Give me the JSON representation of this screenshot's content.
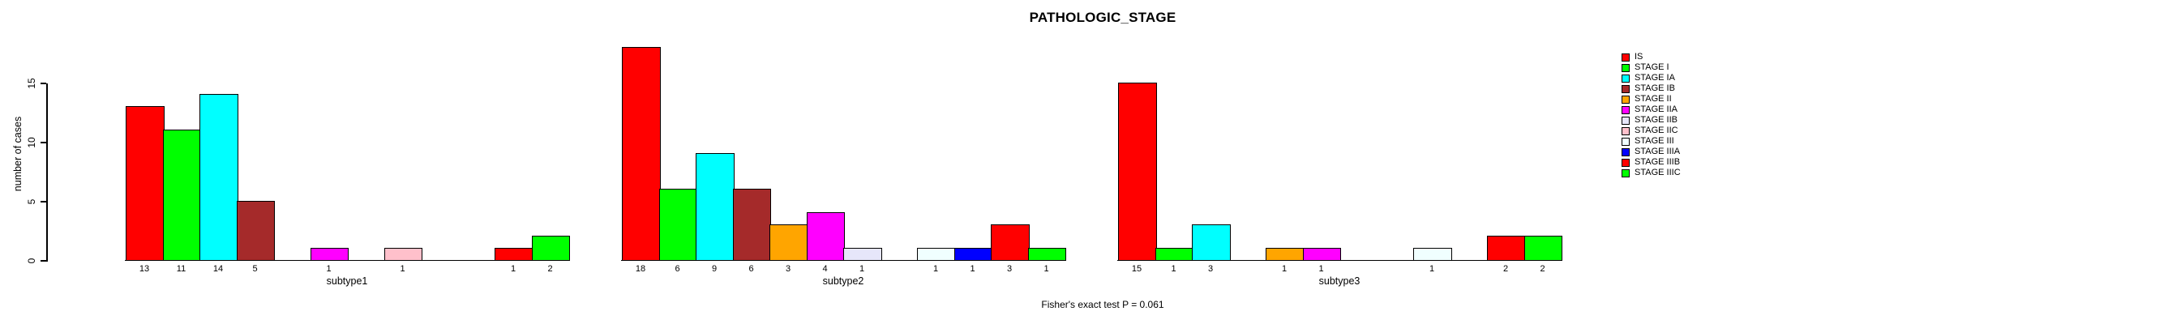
{
  "title": "PATHOLOGIC_STAGE",
  "footer": "Fisher's exact test P = 0.061",
  "chart_data": {
    "type": "bar",
    "title": "PATHOLOGIC_STAGE",
    "xlabel": "",
    "ylabel": "number of cases",
    "ylim": [
      0,
      18
    ],
    "yticks": [
      0,
      5,
      10,
      15
    ],
    "grid": false,
    "legend_position": "right",
    "bar_labels_shown": true,
    "categories": [
      "subtype1",
      "subtype2",
      "subtype3"
    ],
    "series": [
      {
        "name": "IS",
        "color": "#FF0000",
        "values": [
          13,
          18,
          15
        ]
      },
      {
        "name": "STAGE I",
        "color": "#00FF00",
        "values": [
          11,
          6,
          1
        ]
      },
      {
        "name": "STAGE IA",
        "color": "#00FFFF",
        "values": [
          14,
          9,
          3
        ]
      },
      {
        "name": "STAGE IB",
        "color": "#A52A2A",
        "values": [
          5,
          6,
          0
        ]
      },
      {
        "name": "STAGE II",
        "color": "#FFA500",
        "values": [
          0,
          3,
          1
        ]
      },
      {
        "name": "STAGE IIA",
        "color": "#FF00FF",
        "values": [
          1,
          4,
          1
        ]
      },
      {
        "name": "STAGE IIB",
        "color": "#E6E6FA",
        "values": [
          0,
          1,
          0
        ]
      },
      {
        "name": "STAGE IIC",
        "color": "#FFC0CB",
        "values": [
          1,
          0,
          0
        ]
      },
      {
        "name": "STAGE III",
        "color": "#F0FFFF",
        "values": [
          0,
          1,
          1
        ]
      },
      {
        "name": "STAGE IIIA",
        "color": "#0000FF",
        "values": [
          0,
          1,
          0
        ]
      },
      {
        "name": "STAGE IIIB",
        "color": "#FF0000",
        "values": [
          1,
          3,
          2
        ]
      },
      {
        "name": "STAGE IIIC",
        "color": "#00FF00",
        "values": [
          2,
          1,
          2
        ]
      }
    ],
    "annotation": "Fisher's exact test P = 0.061"
  }
}
